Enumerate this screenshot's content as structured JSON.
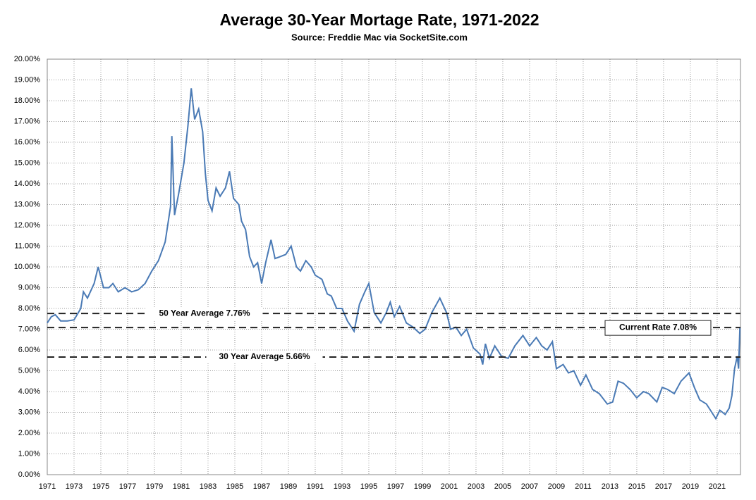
{
  "chart_data": {
    "type": "line",
    "title": "Average 30-Year Mortage Rate, 1971-2022",
    "subtitle": "Source: Freddie Mac via SocketSite.com",
    "xlim": [
      1971,
      2022.74
    ],
    "xticks": [
      1971,
      1973,
      1975,
      1977,
      1979,
      1981,
      1983,
      1985,
      1987,
      1989,
      1991,
      1993,
      1995,
      1997,
      1999,
      2001,
      2003,
      2005,
      2007,
      2009,
      2011,
      2013,
      2015,
      2017,
      2019,
      2021
    ],
    "ylim": [
      0,
      20
    ],
    "yticks": [
      {
        "value": 0,
        "label": "0.00%"
      },
      {
        "value": 1,
        "label": "1.00%"
      },
      {
        "value": 2,
        "label": "2.00%"
      },
      {
        "value": 3,
        "label": "3.00%"
      },
      {
        "value": 4,
        "label": "4.00%"
      },
      {
        "value": 5,
        "label": "5.00%"
      },
      {
        "value": 6,
        "label": "6.00%"
      },
      {
        "value": 7,
        "label": "7.00%"
      },
      {
        "value": 8,
        "label": "8.00%"
      },
      {
        "value": 9,
        "label": "9.00%"
      },
      {
        "value": 10,
        "label": "10.00%"
      },
      {
        "value": 11,
        "label": "11.00%"
      },
      {
        "value": 12,
        "label": "12.00%"
      },
      {
        "value": 13,
        "label": "13.00%"
      },
      {
        "value": 14,
        "label": "14.00%"
      },
      {
        "value": 15,
        "label": "15.00%"
      },
      {
        "value": 16,
        "label": "16.00%"
      },
      {
        "value": 17,
        "label": "17.00%"
      },
      {
        "value": 18,
        "label": "18.00%"
      },
      {
        "value": 19,
        "label": "19.00%"
      },
      {
        "value": 20,
        "label": "20.00%"
      }
    ],
    "grid": true,
    "color": "#4a7ab5",
    "x": [
      1971.0,
      1971.3,
      1971.6,
      1972.0,
      1972.5,
      1973.0,
      1973.5,
      1973.7,
      1974.0,
      1974.5,
      1974.8,
      1975.2,
      1975.6,
      1975.9,
      1976.3,
      1976.8,
      1977.3,
      1977.8,
      1978.3,
      1978.8,
      1979.3,
      1979.8,
      1980.2,
      1980.3,
      1980.5,
      1980.8,
      1981.2,
      1981.5,
      1981.75,
      1982.0,
      1982.3,
      1982.6,
      1982.8,
      1983.0,
      1983.3,
      1983.6,
      1983.9,
      1984.3,
      1984.6,
      1984.9,
      1985.3,
      1985.5,
      1985.8,
      1986.1,
      1986.4,
      1986.7,
      1987.0,
      1987.3,
      1987.7,
      1988.0,
      1988.4,
      1988.8,
      1989.2,
      1989.6,
      1989.9,
      1990.3,
      1990.7,
      1991.0,
      1991.5,
      1991.9,
      1992.2,
      1992.6,
      1993.0,
      1993.4,
      1993.9,
      1994.3,
      1994.7,
      1995.0,
      1995.4,
      1995.9,
      1996.3,
      1996.6,
      1996.9,
      1997.3,
      1997.8,
      1998.3,
      1998.8,
      1999.2,
      1999.7,
      2000.3,
      2000.8,
      2001.1,
      2001.5,
      2001.9,
      2002.3,
      2002.8,
      2003.3,
      2003.5,
      2003.7,
      2004.0,
      2004.4,
      2004.9,
      2005.4,
      2005.9,
      2006.5,
      2007.0,
      2007.5,
      2007.9,
      2008.3,
      2008.7,
      2009.0,
      2009.5,
      2009.9,
      2010.3,
      2010.8,
      2011.2,
      2011.7,
      2012.2,
      2012.8,
      2013.2,
      2013.6,
      2014.0,
      2014.5,
      2015.0,
      2015.5,
      2015.9,
      2016.5,
      2016.9,
      2017.3,
      2017.8,
      2018.3,
      2018.9,
      2019.3,
      2019.7,
      2020.2,
      2020.6,
      2020.9,
      2021.2,
      2021.6,
      2021.9,
      2022.1,
      2022.3,
      2022.5,
      2022.6,
      2022.7
    ],
    "values": [
      7.3,
      7.6,
      7.7,
      7.4,
      7.4,
      7.45,
      8.0,
      8.8,
      8.5,
      9.2,
      10.0,
      9.0,
      9.0,
      9.2,
      8.8,
      9.0,
      8.8,
      8.9,
      9.2,
      9.8,
      10.3,
      11.2,
      12.9,
      16.3,
      12.5,
      13.5,
      15.0,
      16.8,
      18.6,
      17.1,
      17.6,
      16.5,
      14.5,
      13.2,
      12.7,
      13.8,
      13.4,
      13.8,
      14.6,
      13.3,
      13.0,
      12.2,
      11.8,
      10.5,
      10.0,
      10.2,
      9.2,
      10.2,
      11.3,
      10.4,
      10.5,
      10.6,
      11.0,
      10.0,
      9.8,
      10.3,
      10.0,
      9.6,
      9.4,
      8.7,
      8.6,
      8.0,
      8.0,
      7.4,
      6.9,
      8.2,
      8.8,
      9.2,
      7.8,
      7.3,
      7.8,
      8.3,
      7.6,
      8.1,
      7.3,
      7.1,
      6.8,
      7.0,
      7.8,
      8.5,
      7.8,
      7.0,
      7.1,
      6.7,
      7.0,
      6.1,
      5.8,
      5.3,
      6.3,
      5.6,
      6.2,
      5.7,
      5.6,
      6.2,
      6.7,
      6.2,
      6.6,
      6.2,
      6.0,
      6.4,
      5.1,
      5.3,
      4.9,
      5.0,
      4.3,
      4.8,
      4.1,
      3.9,
      3.4,
      3.5,
      4.5,
      4.4,
      4.1,
      3.7,
      4.0,
      3.9,
      3.5,
      4.2,
      4.1,
      3.9,
      4.5,
      4.9,
      4.2,
      3.6,
      3.4,
      3.0,
      2.7,
      3.1,
      2.9,
      3.2,
      3.8,
      5.1,
      5.7,
      5.1,
      7.08
    ],
    "reference_lines": [
      {
        "label": "50 Year Average 7.76%",
        "value": 7.76
      },
      {
        "label": "Current Rate 7.08%",
        "value": 7.08
      },
      {
        "label": "30 Year Average 5.66%",
        "value": 5.66
      }
    ]
  }
}
